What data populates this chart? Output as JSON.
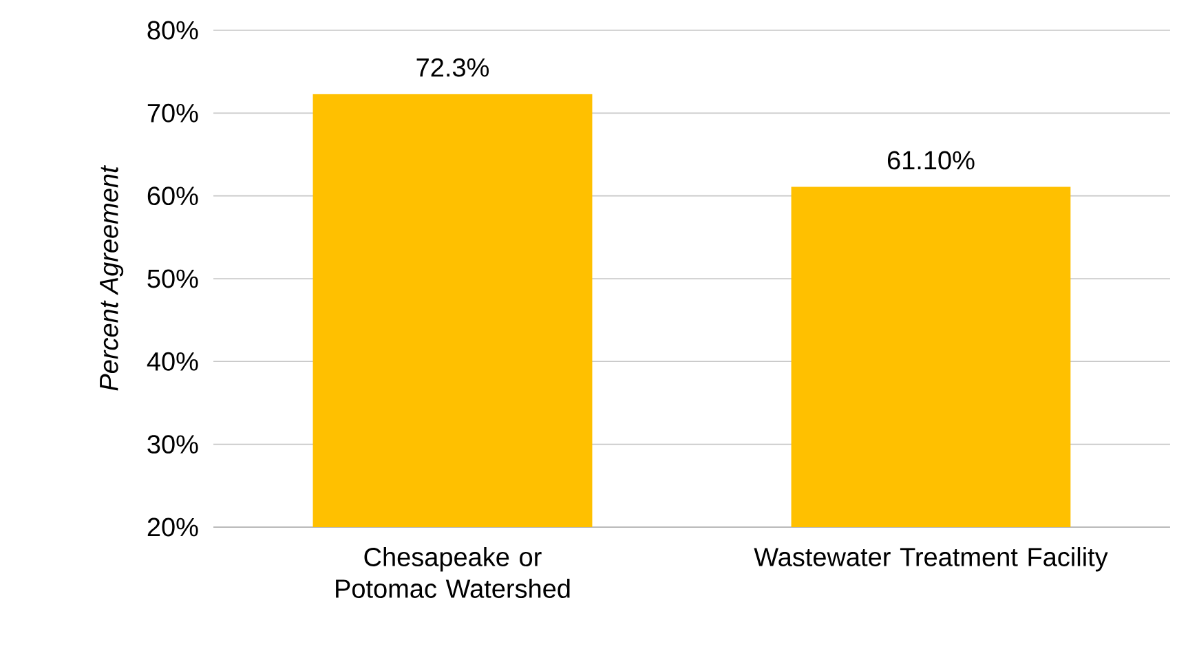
{
  "chart_data": {
    "type": "bar",
    "ylabel": "Percent Agreement",
    "categories": [
      "Chesapeake or Potomac Watershed",
      "Wastewater Treatment Facility"
    ],
    "values": [
      72.3,
      61.1
    ],
    "value_labels": [
      "72.3%",
      "61.10%"
    ],
    "color": "#ffc000",
    "ylim": [
      20,
      80
    ],
    "yticks": [
      {
        "value": 20,
        "label": "20%"
      },
      {
        "value": 30,
        "label": "30%"
      },
      {
        "value": 40,
        "label": "40%"
      },
      {
        "value": 50,
        "label": "50%"
      },
      {
        "value": 60,
        "label": "60%"
      },
      {
        "value": 70,
        "label": "70%"
      },
      {
        "value": 80,
        "label": "80%"
      }
    ],
    "grid": "y"
  }
}
